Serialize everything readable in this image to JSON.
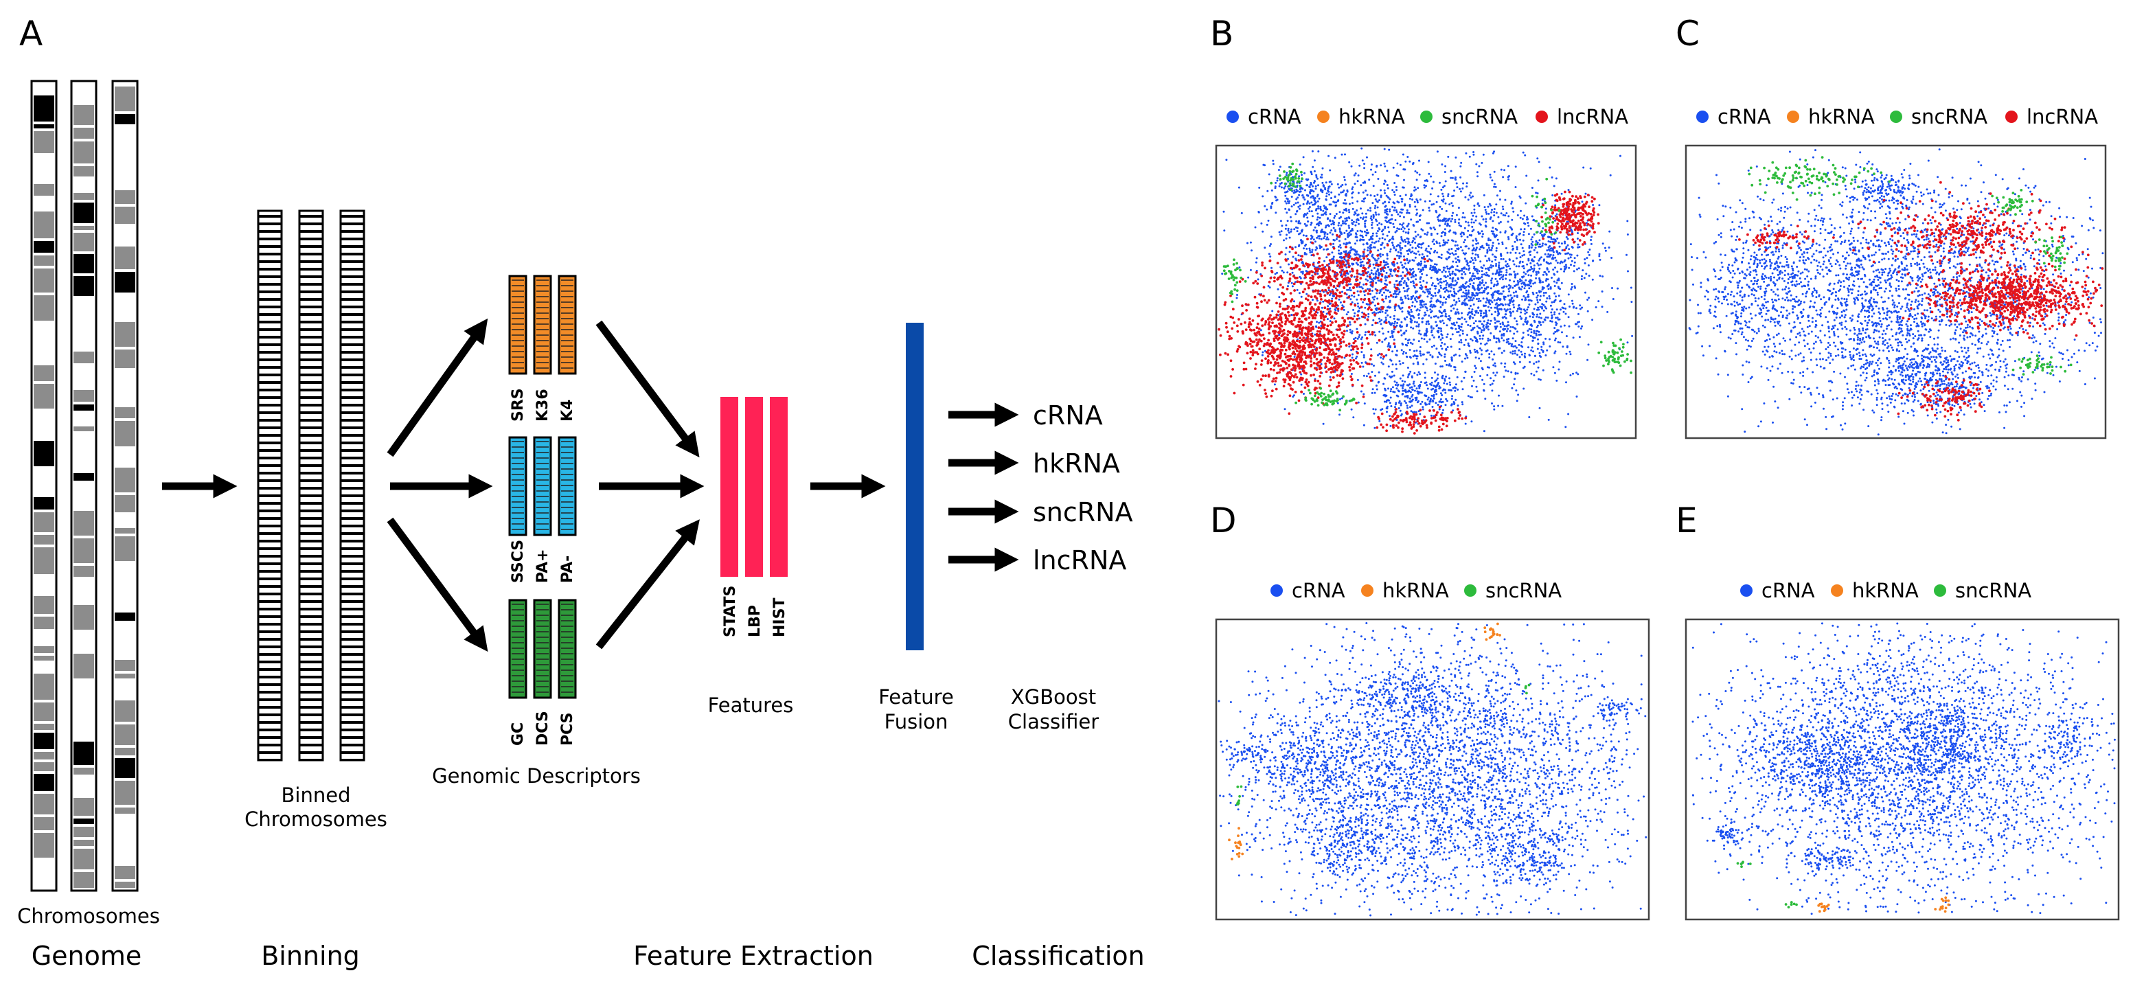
{
  "panels": {
    "A": "A",
    "B": "B",
    "C": "C",
    "D": "D",
    "E": "E"
  },
  "pipeline": {
    "genome": {
      "label": "Chromosomes",
      "stage": "Genome"
    },
    "binning": {
      "label_line1": "Binned",
      "label_line2": "Chromosomes",
      "stage": "Binning"
    },
    "descriptors": {
      "caption": "Genomic Descriptors",
      "orange_group": [
        "SRS",
        "K36",
        "K4"
      ],
      "cyan_group": [
        "SSCS",
        "PA+",
        "PA-"
      ],
      "green_group": [
        "GC",
        "DCS",
        "PCS"
      ],
      "colors": {
        "orange": "#f28c28",
        "cyan": "#29b6e6",
        "green": "#2e9a3a"
      }
    },
    "features": {
      "bars": [
        "STATS",
        "LBP",
        "HIST"
      ],
      "caption": "Features",
      "color": "#ff2255"
    },
    "fusion": {
      "line1": "Feature",
      "line2": "Fusion",
      "color": "#0a4aa8"
    },
    "classifier": {
      "line1": "XGBoost",
      "line2": "Classifier",
      "outputs": [
        "cRNA",
        "hkRNA",
        "sncRNA",
        "lncRNA"
      ]
    },
    "stage_feature_extraction": "Feature Extraction",
    "stage_classification": "Classification"
  },
  "scatter_panels": {
    "colors": {
      "cRNA": "#1a4ff0",
      "hkRNA": "#f5821f",
      "sncRNA": "#2dbb3c",
      "lncRNA": "#e3141c"
    },
    "legend_4": [
      "cRNA",
      "hkRNA",
      "sncRNA",
      "lncRNA"
    ],
    "legend_3": [
      "cRNA",
      "hkRNA",
      "sncRNA"
    ]
  }
}
